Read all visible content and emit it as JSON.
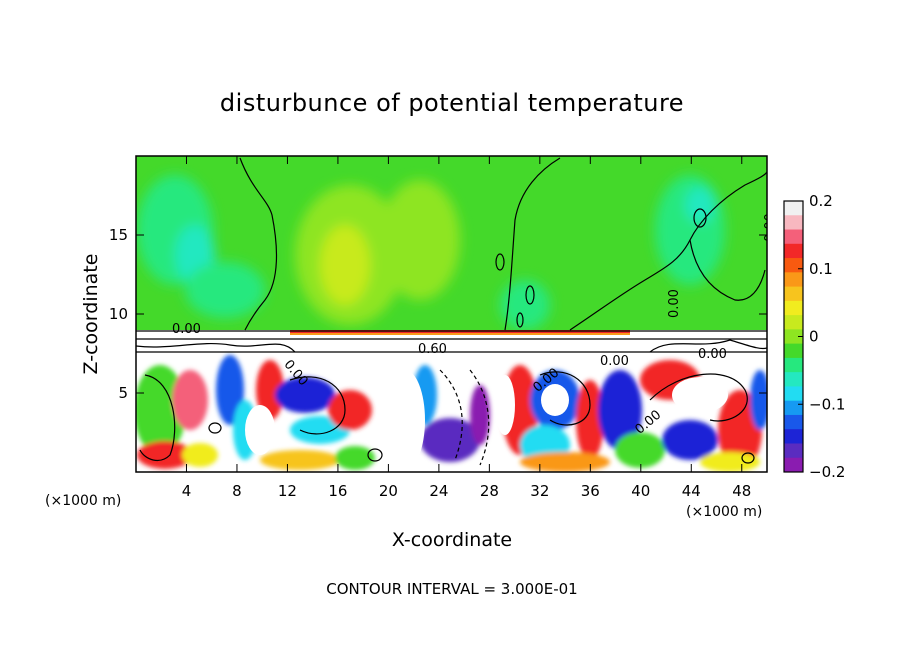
{
  "chart_data": {
    "type": "heatmap",
    "title": "disturbunce of potential temperature",
    "xlabel": "X-coordinate",
    "ylabel": "Z-coordinate",
    "x_unit": "(×1000 m)",
    "x_range": [
      0,
      50
    ],
    "y_range": [
      0,
      20
    ],
    "x_ticks": [
      4,
      8,
      12,
      16,
      20,
      24,
      28,
      32,
      36,
      40,
      44,
      48
    ],
    "y_ticks": [
      5,
      10,
      15
    ],
    "colorbar": {
      "range": [
        -0.2,
        0.2
      ],
      "ticks": [
        "0.2",
        "0.1",
        "0",
        "−0.1",
        "−0.2"
      ],
      "tick_values": [
        0.2,
        0.1,
        0,
        -0.1,
        -0.2
      ],
      "colors": [
        "#f1f1f1",
        "#f8b8c0",
        "#f4607a",
        "#f22828",
        "#f85a10",
        "#fa9818",
        "#f7c41e",
        "#f1ec1f",
        "#c8ea1e",
        "#8ee521",
        "#44d92a",
        "#26e87e",
        "#24e8c0",
        "#22dcf2",
        "#169af2",
        "#1958ea",
        "#1d24d6",
        "#5a2cc0",
        "#8a1cb0"
      ]
    },
    "contour_labels": [
      "0.00",
      "0.00",
      "0.00",
      "0.00",
      "0.00",
      "0.60",
      "0.00",
      "0.00",
      "0.00"
    ],
    "contour_interval": "CONTOUR INTERVAL = 3.000E-01",
    "grid": false
  }
}
